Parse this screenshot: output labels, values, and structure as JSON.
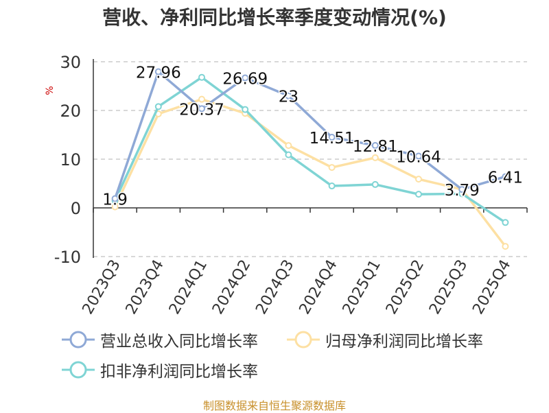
{
  "source_note": "制图数据来自恒生聚源数据库",
  "chart_data": {
    "type": "line",
    "title": "营收、净利同比增长率季度变动情况(%)",
    "ylabel": "%",
    "ylim": [
      -10,
      30
    ],
    "yticks": [
      "30",
      "20",
      "10",
      "0",
      "-10"
    ],
    "categories": [
      "2023Q3",
      "2023Q4",
      "2024Q1",
      "2024Q2",
      "2024Q3",
      "2024Q4",
      "2025Q1",
      "2025Q2",
      "2025Q3",
      "2025Q4"
    ],
    "grid": true,
    "legend_position": "bottom",
    "series": [
      {
        "name": "营业总收入同比增长率",
        "color": "#8fa9d6",
        "values": [
          1.9,
          27.96,
          20.37,
          26.69,
          23,
          14.51,
          12.81,
          10.64,
          3.79,
          6.41
        ],
        "labels": [
          "1.9",
          "27.96",
          "20.37",
          "26.69",
          "23",
          "14.51",
          "12.81",
          "10.64",
          "3.79",
          "6.41"
        ]
      },
      {
        "name": "归母净利润同比增长率",
        "color": "#fde0a3",
        "values": [
          0.2,
          19.3,
          22.3,
          19.4,
          12.8,
          8.3,
          10.3,
          5.9,
          3.8,
          -7.9
        ]
      },
      {
        "name": "扣非净利润同比增长率",
        "color": "#7fd4d4",
        "values": [
          1.5,
          20.8,
          26.8,
          20.2,
          10.9,
          4.5,
          4.8,
          2.8,
          2.9,
          -3.0
        ]
      }
    ]
  }
}
